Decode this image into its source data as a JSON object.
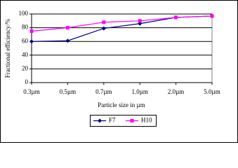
{
  "chart_data": {
    "type": "line",
    "x_label": "Particle size in µm",
    "y_label": "Fractional efficiency/%",
    "categories": [
      "0.3µm",
      "0.5µm",
      "0.7µm",
      "1.0µm",
      "2.0µm",
      "5.0µm"
    ],
    "series": [
      {
        "name": "F7",
        "color": "#000080",
        "marker": "diamond",
        "values": [
          60,
          61,
          79,
          86,
          95,
          97
        ]
      },
      {
        "name": "H10",
        "color": "#ff00ff",
        "marker": "square",
        "values": [
          75,
          80,
          88,
          90,
          95,
          97
        ]
      }
    ],
    "ylim": [
      0,
      100
    ],
    "yticks": [
      0,
      20,
      40,
      60,
      80,
      100
    ],
    "grid": true,
    "legend": "bottom"
  }
}
